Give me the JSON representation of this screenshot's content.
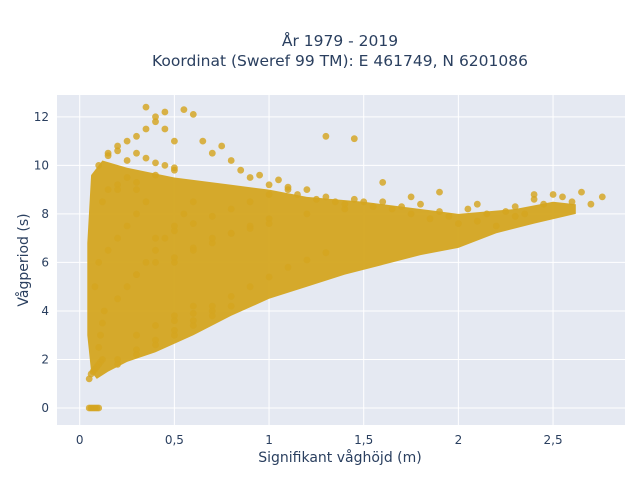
{
  "chart_data": {
    "type": "scatter",
    "title_lines": [
      "År 1979 - 2019",
      "Koordinat (Sweref 99 TM): E 461749, N 6201086"
    ],
    "xlabel": "Signifikant våghöjd (m)",
    "ylabel": "Vågperiod (s)",
    "xlim": [
      -0.12,
      2.88
    ],
    "ylim": [
      -0.7,
      12.9
    ],
    "xticks": [
      0,
      0.5,
      1,
      1.5,
      2,
      2.5
    ],
    "xtick_labels": [
      "0",
      "0,5",
      "1",
      "1,5",
      "2",
      "2,5"
    ],
    "yticks": [
      0,
      2,
      4,
      6,
      8,
      10,
      12
    ],
    "ytick_labels": [
      "0",
      "2",
      "4",
      "6",
      "8",
      "10",
      "12"
    ],
    "grid": true,
    "marker_color": "#d4a520",
    "plot_background": "#e5e9f2",
    "series": [
      {
        "x": [
          0.05,
          0.06,
          0.07,
          0.08,
          0.09,
          0.1,
          0.05,
          0.06,
          0.07,
          0.08,
          0.09,
          0.1,
          0.11,
          0.12,
          0.1,
          0.11,
          0.12,
          0.13,
          0.08,
          0.1,
          0.15,
          0.2,
          0.25,
          0.3,
          0.12,
          0.15,
          0.2,
          0.25,
          0.3,
          0.35,
          0.1,
          0.15,
          0.2,
          0.25,
          0.3,
          0.35,
          0.4,
          0.45,
          0.35,
          0.4,
          0.45,
          0.5,
          0.55,
          0.6,
          0.65,
          0.7,
          0.75,
          0.8,
          0.85,
          0.9,
          0.95,
          1.0,
          1.05,
          1.1,
          1.15,
          1.2,
          1.25,
          1.3,
          1.35,
          1.4,
          1.45,
          1.5,
          1.55,
          1.6,
          1.65,
          1.7,
          1.75,
          1.8,
          1.85,
          1.9,
          1.95,
          2.0,
          2.05,
          2.1,
          2.15,
          2.2,
          2.25,
          2.3,
          2.35,
          2.4,
          2.45,
          2.5,
          2.55,
          2.6,
          2.65,
          2.7,
          2.76,
          0.5,
          0.6,
          0.7,
          0.8,
          0.9,
          1.0,
          1.1,
          1.2,
          1.3,
          0.4,
          0.5,
          0.6,
          0.7,
          0.8,
          0.9,
          1.0,
          1.1,
          0.5,
          0.6,
          0.7,
          0.8,
          0.9,
          1.0,
          1.2,
          1.4,
          0.2,
          0.3,
          0.4,
          0.5,
          0.6,
          0.7,
          0.2,
          0.25,
          0.3,
          0.35,
          0.4,
          0.45,
          0.5,
          0.55,
          0.6,
          0.3,
          0.4,
          0.5,
          0.6,
          0.2,
          0.3,
          0.4,
          0.5,
          0.15,
          0.2,
          0.25,
          0.3,
          0.35,
          0.4,
          0.45,
          0.5,
          0.2,
          0.3,
          0.4,
          0.5,
          0.6,
          0.7,
          0.8,
          1.3,
          1.45,
          1.6,
          1.75,
          1.9,
          2.1,
          2.3,
          2.4,
          0.3,
          0.4,
          0.5,
          0.6,
          0.7,
          0.8,
          0.9,
          1.0
        ],
        "y": [
          0,
          0,
          0,
          0,
          0,
          0,
          1.2,
          1.4,
          1.5,
          1.6,
          1.7,
          1.8,
          1.9,
          2.0,
          2.5,
          3.0,
          3.5,
          4.0,
          5.0,
          6.0,
          6.5,
          7.0,
          7.5,
          8.0,
          8.5,
          9.0,
          9.2,
          9.5,
          9.0,
          8.5,
          10.0,
          10.5,
          10.8,
          11.0,
          11.2,
          11.5,
          11.8,
          12.2,
          12.4,
          12.0,
          11.5,
          11.0,
          12.3,
          12.1,
          11.0,
          10.5,
          10.8,
          10.2,
          9.8,
          9.5,
          9.6,
          9.2,
          9.4,
          9.0,
          8.8,
          9.0,
          8.6,
          8.7,
          8.5,
          8.4,
          8.6,
          8.5,
          8.3,
          8.5,
          8.2,
          8.3,
          8.0,
          8.4,
          7.8,
          8.1,
          7.9,
          7.6,
          8.2,
          7.7,
          8.0,
          7.5,
          8.1,
          8.3,
          8.0,
          8.6,
          8.4,
          8.8,
          8.7,
          8.5,
          8.9,
          8.4,
          8.7,
          3.6,
          3.9,
          4.2,
          4.6,
          5.0,
          5.4,
          5.8,
          6.1,
          6.4,
          7.0,
          7.3,
          7.6,
          7.9,
          8.2,
          8.5,
          8.8,
          9.1,
          6.0,
          6.5,
          6.8,
          7.2,
          7.5,
          7.8,
          8.0,
          8.2,
          2.0,
          2.4,
          2.8,
          3.2,
          3.6,
          4.0,
          4.5,
          5.0,
          5.5,
          6.0,
          6.5,
          7.0,
          7.5,
          8.0,
          8.5,
          3.0,
          3.4,
          3.8,
          4.2,
          9.0,
          9.3,
          9.6,
          9.8,
          10.4,
          10.6,
          10.2,
          10.5,
          10.3,
          10.1,
          10.0,
          9.9,
          1.8,
          2.2,
          2.6,
          3.0,
          3.4,
          3.8,
          4.2,
          11.2,
          11.1,
          9.3,
          8.7,
          8.9,
          8.4,
          7.9,
          8.8,
          5.5,
          6.0,
          6.2,
          6.6,
          7.0,
          7.2,
          7.4,
          7.6
        ]
      }
    ]
  }
}
